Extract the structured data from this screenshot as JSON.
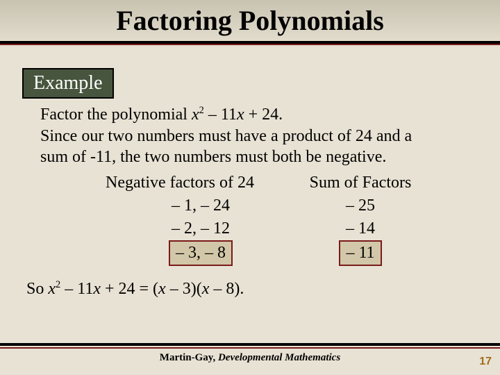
{
  "title": "Factoring Polynomials",
  "example_label": "Example",
  "body": {
    "line1_a": "Factor the polynomial ",
    "line1_poly_x2": "x",
    "line1_poly_rest": " – 11",
    "line1_poly_x": "x",
    "line1_poly_end": " + 24.",
    "line2": "Since our two numbers must have a product of 24 and a",
    "line3": "sum of -11, the two numbers must both be negative.",
    "header_left": "Negative factors of 24",
    "header_right": "Sum of Factors",
    "rows": [
      {
        "factors": "– 1, – 24",
        "sum": "– 25",
        "highlight": false
      },
      {
        "factors": "– 2, – 12",
        "sum": "– 14",
        "highlight": false
      },
      {
        "factors": "– 3, – 8",
        "sum": "– 11",
        "highlight": true
      }
    ],
    "result_a": "So ",
    "result_x2": "x",
    "result_mid": " – 11",
    "result_x": "x",
    "result_eq": " + 24 = (",
    "result_xm3": "x",
    "result_m3": " – 3)(",
    "result_xm8": "x",
    "result_m8": " – 8)."
  },
  "footer": {
    "author": "Martin-Gay, ",
    "title": "Developmental Mathematics"
  },
  "pagenum": "17",
  "colors": {
    "example_bg": "#48553e",
    "highlight_border": "#7a1a1a",
    "highlight_bg": "#d2c7a8",
    "page_bg": "#e8e2d4"
  }
}
